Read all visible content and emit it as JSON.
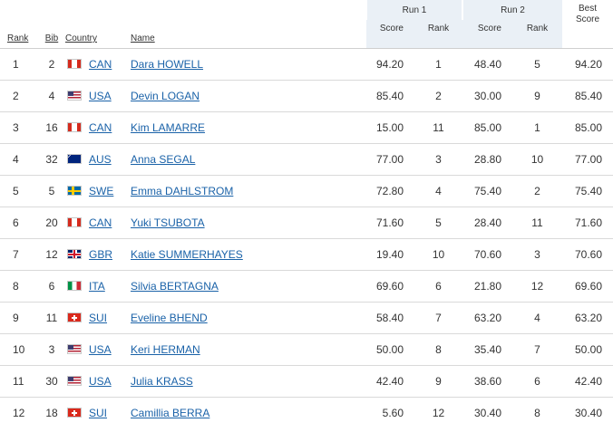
{
  "header": {
    "run1": "Run 1",
    "run2": "Run 2",
    "best_line1": "Best",
    "best_line2": "Score",
    "rank": "Rank",
    "bib": "Bib",
    "country": "Country",
    "name": "Name",
    "run1_score": "Score",
    "run1_rank": "Rank",
    "run2_score": "Score",
    "run2_rank": "Rank"
  },
  "rows": [
    {
      "rank": "1",
      "bib": "2",
      "country": "CAN",
      "flag": "canada-flag-icon",
      "name": "Dara HOWELL",
      "r1_score": "94.20",
      "r1_rank": "1",
      "r2_score": "48.40",
      "r2_rank": "5",
      "best": "94.20"
    },
    {
      "rank": "2",
      "bib": "4",
      "country": "USA",
      "flag": "usa-flag-icon",
      "name": "Devin LOGAN",
      "r1_score": "85.40",
      "r1_rank": "2",
      "r2_score": "30.00",
      "r2_rank": "9",
      "best": "85.40"
    },
    {
      "rank": "3",
      "bib": "16",
      "country": "CAN",
      "flag": "canada-flag-icon",
      "name": "Kim LAMARRE",
      "r1_score": "15.00",
      "r1_rank": "11",
      "r2_score": "85.00",
      "r2_rank": "1",
      "best": "85.00"
    },
    {
      "rank": "4",
      "bib": "32",
      "country": "AUS",
      "flag": "australia-flag-icon",
      "name": "Anna SEGAL",
      "r1_score": "77.00",
      "r1_rank": "3",
      "r2_score": "28.80",
      "r2_rank": "10",
      "best": "77.00"
    },
    {
      "rank": "5",
      "bib": "5",
      "country": "SWE",
      "flag": "sweden-flag-icon",
      "name": "Emma DAHLSTROM",
      "r1_score": "72.80",
      "r1_rank": "4",
      "r2_score": "75.40",
      "r2_rank": "2",
      "best": "75.40"
    },
    {
      "rank": "6",
      "bib": "20",
      "country": "CAN",
      "flag": "canada-flag-icon",
      "name": "Yuki TSUBOTA",
      "r1_score": "71.60",
      "r1_rank": "5",
      "r2_score": "28.40",
      "r2_rank": "11",
      "best": "71.60"
    },
    {
      "rank": "7",
      "bib": "12",
      "country": "GBR",
      "flag": "great-britain-flag-icon",
      "name": "Katie SUMMERHAYES",
      "r1_score": "19.40",
      "r1_rank": "10",
      "r2_score": "70.60",
      "r2_rank": "3",
      "best": "70.60"
    },
    {
      "rank": "8",
      "bib": "6",
      "country": "ITA",
      "flag": "italy-flag-icon",
      "name": "Silvia BERTAGNA",
      "r1_score": "69.60",
      "r1_rank": "6",
      "r2_score": "21.80",
      "r2_rank": "12",
      "best": "69.60"
    },
    {
      "rank": "9",
      "bib": "11",
      "country": "SUI",
      "flag": "switzerland-flag-icon",
      "name": "Eveline BHEND",
      "r1_score": "58.40",
      "r1_rank": "7",
      "r2_score": "63.20",
      "r2_rank": "4",
      "best": "63.20"
    },
    {
      "rank": "10",
      "bib": "3",
      "country": "USA",
      "flag": "usa-flag-icon",
      "name": "Keri HERMAN",
      "r1_score": "50.00",
      "r1_rank": "8",
      "r2_score": "35.40",
      "r2_rank": "7",
      "best": "50.00"
    },
    {
      "rank": "11",
      "bib": "30",
      "country": "USA",
      "flag": "usa-flag-icon",
      "name": "Julia KRASS",
      "r1_score": "42.40",
      "r1_rank": "9",
      "r2_score": "38.60",
      "r2_rank": "6",
      "best": "42.40"
    },
    {
      "rank": "12",
      "bib": "18",
      "country": "SUI",
      "flag": "switzerland-flag-icon",
      "name": "Camillia BERRA",
      "r1_score": "5.60",
      "r1_rank": "12",
      "r2_score": "30.40",
      "r2_rank": "8",
      "best": "30.40"
    }
  ],
  "colors": {
    "shade": "#eaf0f6",
    "link": "#1a62a8",
    "divider": "#d9d9d9"
  }
}
